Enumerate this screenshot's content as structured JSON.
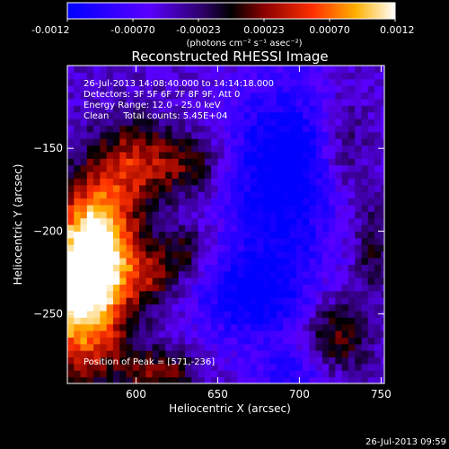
{
  "colorbar": {
    "tick_labels": [
      "-0.0012",
      "-0.00070",
      "-0.00023",
      "0.00023",
      "0.00070",
      "0.0012"
    ],
    "unit_label": "(photons cm⁻² s⁻¹ asec⁻²)",
    "range": [
      -0.0012,
      0.0012
    ]
  },
  "chart_data": {
    "type": "heatmap",
    "title": "Reconstructed RHESSI Image",
    "xlabel": "Heliocentric X (arcsec)",
    "ylabel": "Heliocentric Y (arcsec)",
    "xlim": [
      558,
      752
    ],
    "ylim": [
      -292,
      -100
    ],
    "xticks": [
      600,
      650,
      700,
      750
    ],
    "yticks": [
      -150,
      -200,
      -250
    ],
    "xtick_labels": [
      "600",
      "650",
      "700",
      "750"
    ],
    "ytick_labels": [
      "−150",
      "−200",
      "−250"
    ],
    "annotations": [
      "26-Jul-2013 14:08:40.000 to 14:14:18.000",
      "Detectors: 3F 5F 6F 7F 8F 9F, Att 0",
      "Energy Range: 12.0 - 25.0 keV",
      "Clean     Total counts: 5.45E+04"
    ],
    "peak_label": "Position of Peak = [571,-236]",
    "peak": {
      "x": 571,
      "y": -236
    },
    "blobs": [
      {
        "x": 566,
        "y": -240,
        "sx": 20,
        "sy": 34,
        "amp": 1.05
      },
      {
        "x": 578,
        "y": -205,
        "sx": 16,
        "sy": 26,
        "amp": 0.8
      },
      {
        "x": 600,
        "y": -158,
        "sx": 18,
        "sy": 18,
        "amp": 0.55
      },
      {
        "x": 612,
        "y": -225,
        "sx": 12,
        "sy": 12,
        "amp": 0.42
      },
      {
        "x": 615,
        "y": -285,
        "sx": 16,
        "sy": 10,
        "amp": 0.45
      },
      {
        "x": 635,
        "y": -160,
        "sx": 14,
        "sy": 12,
        "amp": 0.35
      },
      {
        "x": 632,
        "y": -210,
        "sx": 10,
        "sy": 10,
        "amp": 0.3
      },
      {
        "x": 728,
        "y": -150,
        "sx": 10,
        "sy": 22,
        "amp": 0.28
      },
      {
        "x": 722,
        "y": -265,
        "sx": 14,
        "sy": 18,
        "amp": 0.45
      },
      {
        "x": 745,
        "y": -210,
        "sx": 8,
        "sy": 20,
        "amp": 0.3
      },
      {
        "x": 690,
        "y": -165,
        "sx": 25,
        "sy": 40,
        "amp": -0.55
      },
      {
        "x": 672,
        "y": -240,
        "sx": 25,
        "sy": 20,
        "amp": -0.45
      },
      {
        "x": 700,
        "y": -285,
        "sx": 20,
        "sy": 10,
        "amp": -0.3
      }
    ]
  },
  "footer_timestamp": "26-Jul-2013 09:59"
}
